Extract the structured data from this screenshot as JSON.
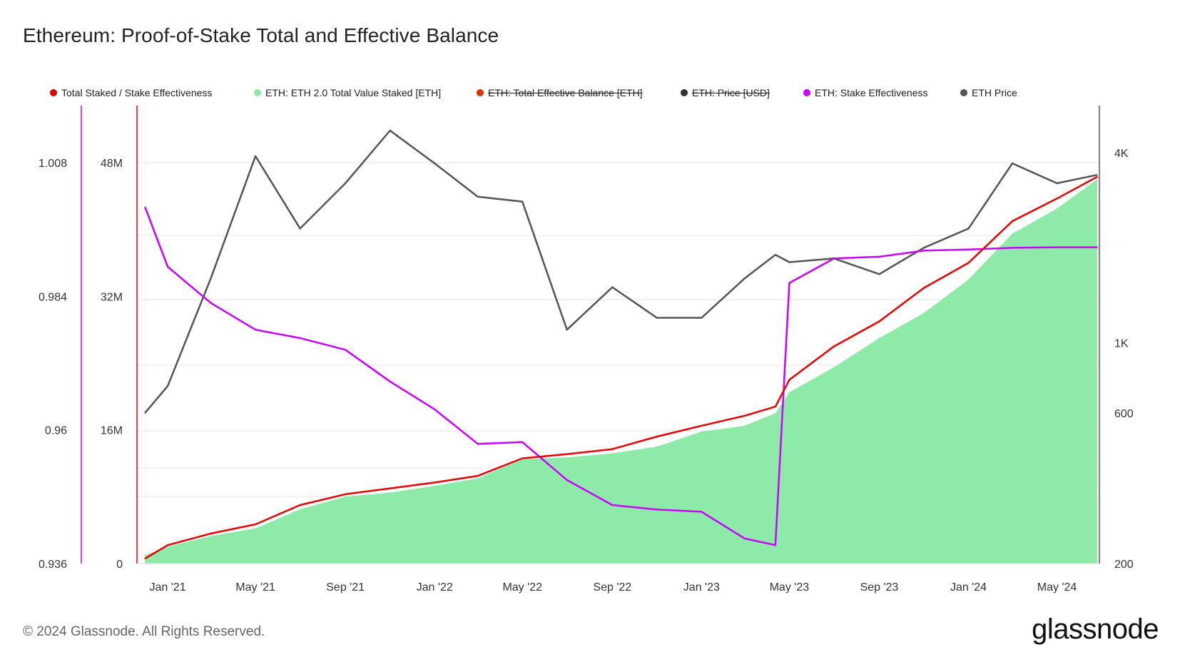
{
  "title": "Ethereum: Proof-of-Stake Total and Effective Balance",
  "legend": [
    {
      "label": "Total Staked / Stake Effectiveness",
      "color": "#e00000",
      "disabled": false
    },
    {
      "label": "ETH: ETH 2.0 Total Value Staked [ETH]",
      "color": "#8deaa8",
      "disabled": false
    },
    {
      "label": "ETH: Total Effective Balance [ETH]",
      "color": "#e03000",
      "disabled": true
    },
    {
      "label": "ETH: Price [USD]",
      "color": "#333333",
      "disabled": true
    },
    {
      "label": "ETH: Stake Effectiveness",
      "color": "#cc00ff",
      "disabled": false
    },
    {
      "label": "ETH Price",
      "color": "#555555",
      "disabled": false
    }
  ],
  "footer": "© 2024 Glassnode. All Rights Reserved.",
  "brand": "glassnode",
  "chart_data": {
    "type": "line",
    "x_tick_labels": [
      "Jan '21",
      "May '21",
      "Sep '21",
      "Jan '22",
      "May '22",
      "Sep '22",
      "Jan '23",
      "May '23",
      "Sep '23",
      "Jan '24",
      "May '24"
    ],
    "left_axis_effectiveness": {
      "ticks": [
        "0.936",
        "0.96",
        "0.984",
        "1.008"
      ],
      "range": [
        0.936,
        1.008
      ]
    },
    "left_axis_staked": {
      "ticks": [
        "0",
        "16M",
        "32M",
        "48M"
      ],
      "range": [
        0,
        48000000
      ]
    },
    "right_axis_price": {
      "ticks": [
        "200",
        "600",
        "1K",
        "4K"
      ],
      "scale": "log"
    },
    "x_dates": [
      "2020-12-01",
      "2021-01-01",
      "2021-03-01",
      "2021-05-01",
      "2021-07-01",
      "2021-09-01",
      "2021-11-01",
      "2022-01-01",
      "2022-03-01",
      "2022-05-01",
      "2022-07-01",
      "2022-09-01",
      "2022-11-01",
      "2023-01-01",
      "2023-03-01",
      "2023-04-12",
      "2023-05-01",
      "2023-07-01",
      "2023-09-01",
      "2023-11-01",
      "2024-01-01",
      "2024-03-01",
      "2024-05-01",
      "2024-06-25"
    ],
    "series": [
      {
        "name": "ETH: ETH 2.0 Total Value Staked [ETH]",
        "color": "#8deaa8",
        "values": [
          1000000,
          2000000,
          3300000,
          4200000,
          6500000,
          8000000,
          8500000,
          9300000,
          10200000,
          12500000,
          12700000,
          13200000,
          14000000,
          15800000,
          16500000,
          18000000,
          20500000,
          23500000,
          27000000,
          30000000,
          34000000,
          39500000,
          42500000,
          46000000
        ]
      },
      {
        "name": "Total Staked / Stake Effectiveness",
        "color": "#ee0000",
        "values": [
          600000,
          2200000,
          3600000,
          4700000,
          7000000,
          8300000,
          9000000,
          9700000,
          10500000,
          12600000,
          13100000,
          13700000,
          15200000,
          16500000,
          17700000,
          18800000,
          22000000,
          26000000,
          29000000,
          33000000,
          36000000,
          41000000,
          43700000,
          46300000
        ]
      },
      {
        "name": "ETH: Stake Effectiveness",
        "color": "#cc00ff",
        "values": [
          1.0,
          0.9893,
          0.9828,
          0.978,
          0.9765,
          0.9744,
          0.9687,
          0.9637,
          0.9575,
          0.9578,
          0.951,
          0.9465,
          0.9457,
          0.9453,
          0.9405,
          0.9393,
          0.9864,
          0.9908,
          0.9911,
          0.9922,
          0.9924,
          0.9927,
          0.9928,
          0.9928
        ]
      },
      {
        "name": "ETH Price",
        "color": "#555555",
        "values": [
          600,
          730,
          1600,
          3900,
          2300,
          3200,
          4700,
          3700,
          2900,
          2800,
          1100,
          1500,
          1200,
          1200,
          1600,
          1900,
          1800,
          1850,
          1650,
          2000,
          2300,
          3700,
          3200,
          3400
        ]
      }
    ],
    "grid": true
  }
}
